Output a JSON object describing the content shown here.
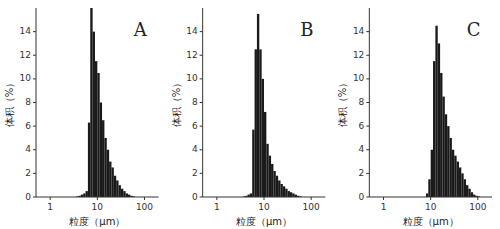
{
  "chart_data": [
    {
      "type": "histogram",
      "annotation": "A",
      "xlabel": "粒度（μm）",
      "ylabel": "体积（%）",
      "log": "x",
      "grid": false,
      "color": "#1a1a1a",
      "background": "#ffffff",
      "xlim": [
        0.5,
        200
      ],
      "xticks": [
        1,
        10,
        100
      ],
      "ylim": [
        0,
        16
      ],
      "yticks": [
        0,
        2,
        4,
        6,
        8,
        10,
        12,
        14
      ],
      "bins": [
        3.548134,
        3.981072,
        4.466836,
        5.011872,
        5.623413,
        6.309573,
        7.079458,
        7.943282,
        8.912509,
        10,
        11.22018,
        12.58925,
        14.12538,
        15.84893,
        17.78279,
        19.95262,
        22.38721,
        25.11886,
        28.18383,
        31.62278,
        35.48134,
        39.81072,
        44.66836,
        50.11872,
        56.23413,
        63.09573
      ],
      "values": [
        0.05,
        0.1,
        0.2,
        0.3,
        0.5,
        6.3,
        16.0,
        14.0,
        11.5,
        10.5,
        8.0,
        6.5,
        5.0,
        4.0,
        3.0,
        2.5,
        1.8,
        1.4,
        1.0,
        0.7,
        0.5,
        0.3,
        0.2,
        0.1,
        0.05
      ]
    },
    {
      "type": "histogram",
      "annotation": "B",
      "xlabel": "粒度（μm）",
      "ylabel": "体积（%）",
      "log": "x",
      "grid": false,
      "color": "#1a1a1a",
      "background": "#ffffff",
      "xlim": [
        0.5,
        200
      ],
      "xticks": [
        1,
        10,
        100
      ],
      "ylim": [
        0,
        16
      ],
      "yticks": [
        0,
        2,
        4,
        6,
        8,
        10,
        12,
        14
      ],
      "bins": [
        3.548134,
        3.981072,
        4.466836,
        5.011872,
        5.623413,
        6.309573,
        7.079458,
        7.943282,
        8.912509,
        10,
        11.22018,
        12.58925,
        14.12538,
        15.84893,
        17.78279,
        19.95262,
        22.38721,
        25.11886,
        28.18383,
        31.62278,
        35.48134,
        39.81072,
        44.66836,
        50.11872,
        56.23413,
        63.09573
      ],
      "values": [
        0.05,
        0.1,
        0.2,
        0.3,
        5.7,
        12.5,
        15.5,
        12.5,
        10.0,
        7.2,
        4.5,
        3.5,
        2.8,
        2.2,
        1.8,
        1.4,
        1.1,
        0.9,
        0.7,
        0.5,
        0.4,
        0.3,
        0.2,
        0.1,
        0.05
      ]
    },
    {
      "type": "histogram",
      "annotation": "C",
      "xlabel": "粒度（μm）",
      "ylabel": "体积（%）",
      "log": "x",
      "grid": false,
      "color": "#1a1a1a",
      "background": "#ffffff",
      "xlim": [
        0.5,
        200
      ],
      "xticks": [
        1,
        10,
        100
      ],
      "ylim": [
        0,
        16
      ],
      "yticks": [
        0,
        2,
        4,
        6,
        8,
        10,
        12,
        14
      ],
      "bins": [
        7.943282,
        8.912509,
        10,
        11.22018,
        12.58925,
        14.12538,
        15.84893,
        17.78279,
        19.95262,
        22.38721,
        25.11886,
        28.18383,
        31.62278,
        35.48134,
        39.81072,
        44.66836,
        50.11872,
        56.23413,
        63.09573,
        70.79458,
        79.43282,
        89.12509,
        100,
        112.2018
      ],
      "values": [
        0.3,
        1.5,
        4.0,
        11.5,
        14.5,
        13.0,
        10.5,
        8.5,
        7.0,
        6.0,
        5.0,
        4.0,
        3.5,
        3.0,
        2.5,
        2.0,
        1.5,
        1.0,
        0.7,
        0.4,
        0.2,
        0.1,
        0.05
      ]
    }
  ]
}
